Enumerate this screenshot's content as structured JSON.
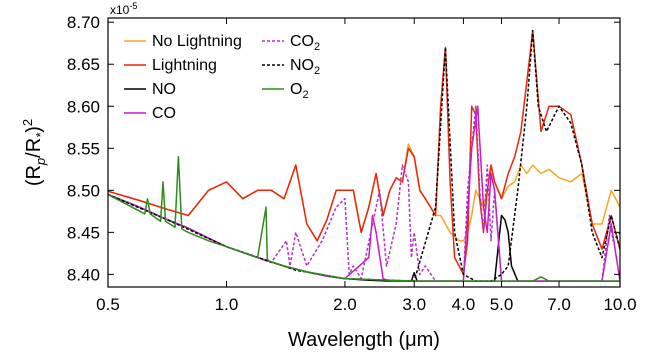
{
  "chart_data": {
    "type": "line",
    "title": "",
    "multiplier": {
      "base": "x10",
      "exp": "-5"
    },
    "xlabel": "Wavelength (μm)",
    "ylabel": {
      "main": "(R",
      "sub1": "p",
      "mid": "/R",
      "sub2": "*",
      "close": ")",
      "sup": "2"
    },
    "xscale": "log",
    "xlim": [
      0.5,
      10.0
    ],
    "ylim": [
      8.385,
      8.705
    ],
    "xticks": [
      0.5,
      1.0,
      2.0,
      3.0,
      4.0,
      5.0,
      7.0,
      10.0
    ],
    "xtick_labels": [
      "0.5",
      "1.0",
      "2.0",
      "3.0",
      "4.0",
      "5.0",
      "7.0",
      "10.0"
    ],
    "yticks": [
      8.4,
      8.45,
      8.5,
      8.55,
      8.6,
      8.65,
      8.7
    ],
    "ytick_labels": [
      "8.40",
      "8.45",
      "8.50",
      "8.55",
      "8.60",
      "8.65",
      "8.70"
    ],
    "grid": false,
    "legend_placement": "top-left",
    "series": [
      {
        "name": "No Lightning",
        "color": "#f5a623",
        "dash": "solid",
        "x": [
          0.5,
          0.6,
          0.7,
          0.8,
          0.9,
          1.0,
          1.1,
          1.2,
          1.3,
          1.4,
          1.5,
          1.6,
          1.7,
          1.8,
          1.9,
          2.0,
          2.1,
          2.2,
          2.3,
          2.4,
          2.5,
          2.6,
          2.7,
          2.8,
          2.9,
          3.0,
          3.1,
          3.2,
          3.3,
          3.4,
          3.5,
          3.6,
          3.7,
          3.8,
          3.9,
          4.0,
          4.1,
          4.2,
          4.3,
          4.4,
          4.5,
          4.6,
          4.7,
          4.8,
          4.9,
          5.0,
          5.2,
          5.4,
          5.6,
          5.8,
          6.0,
          6.3,
          6.6,
          7.0,
          7.5,
          8.0,
          8.5,
          9.0,
          9.5,
          10.0
        ],
        "y": [
          8.499,
          8.488,
          8.478,
          8.47,
          8.5,
          8.51,
          8.49,
          8.5,
          8.5,
          8.49,
          8.53,
          8.46,
          8.44,
          8.465,
          8.5,
          8.5,
          8.5,
          8.45,
          8.48,
          8.52,
          8.47,
          8.5,
          8.515,
          8.51,
          8.555,
          8.54,
          8.5,
          8.49,
          8.48,
          8.47,
          8.47,
          8.46,
          8.45,
          8.445,
          8.44,
          8.44,
          8.45,
          8.47,
          8.5,
          8.49,
          8.48,
          8.5,
          8.53,
          8.51,
          8.5,
          8.49,
          8.505,
          8.51,
          8.53,
          8.52,
          8.53,
          8.52,
          8.525,
          8.515,
          8.51,
          8.52,
          8.46,
          8.46,
          8.5,
          8.48
        ]
      },
      {
        "name": "Lightning",
        "color": "#e8270a",
        "dash": "solid",
        "x": [
          0.5,
          0.6,
          0.7,
          0.8,
          0.9,
          1.0,
          1.1,
          1.2,
          1.3,
          1.4,
          1.5,
          1.6,
          1.7,
          1.8,
          1.9,
          2.0,
          2.1,
          2.2,
          2.3,
          2.4,
          2.5,
          2.6,
          2.7,
          2.8,
          2.9,
          3.0,
          3.1,
          3.2,
          3.3,
          3.4,
          3.5,
          3.6,
          3.7,
          3.8,
          3.9,
          4.0,
          4.1,
          4.2,
          4.3,
          4.4,
          4.5,
          4.6,
          4.7,
          4.8,
          4.9,
          5.0,
          5.2,
          5.4,
          5.6,
          5.8,
          6.0,
          6.3,
          6.6,
          7.0,
          7.5,
          8.0,
          8.5,
          9.0,
          9.5,
          10.0
        ],
        "y": [
          8.499,
          8.488,
          8.478,
          8.47,
          8.5,
          8.51,
          8.49,
          8.5,
          8.5,
          8.49,
          8.53,
          8.46,
          8.44,
          8.465,
          8.5,
          8.5,
          8.5,
          8.45,
          8.48,
          8.52,
          8.47,
          8.5,
          8.515,
          8.51,
          8.55,
          8.54,
          8.5,
          8.49,
          8.48,
          8.47,
          8.6,
          8.67,
          8.51,
          8.42,
          8.41,
          8.4,
          8.44,
          8.6,
          8.59,
          8.49,
          8.45,
          8.5,
          8.53,
          8.51,
          8.5,
          8.49,
          8.52,
          8.54,
          8.57,
          8.63,
          8.69,
          8.57,
          8.6,
          8.6,
          8.59,
          8.53,
          8.46,
          8.43,
          8.47,
          8.43
        ]
      },
      {
        "name": "NO",
        "color": "#000000",
        "dash": "solid",
        "x": [
          0.5,
          0.6,
          0.7,
          0.8,
          0.9,
          1.0,
          1.2,
          1.4,
          1.6,
          1.8,
          2.0,
          2.3,
          2.6,
          2.8,
          2.95,
          3.0,
          3.05,
          3.3,
          3.5,
          4.0,
          4.8,
          5.0,
          5.1,
          5.2,
          5.3,
          5.5,
          6.0,
          7.0,
          8.0,
          9.0,
          10.0
        ],
        "y": [
          8.495,
          8.48,
          8.466,
          8.455,
          8.443,
          8.433,
          8.42,
          8.41,
          8.403,
          8.398,
          8.395,
          8.393,
          8.392,
          8.392,
          8.392,
          8.402,
          8.392,
          8.392,
          8.392,
          8.392,
          8.392,
          8.47,
          8.465,
          8.45,
          8.41,
          8.392,
          8.392,
          8.392,
          8.392,
          8.392,
          8.392
        ]
      },
      {
        "name": "CO",
        "color": "#cc18c2",
        "dash": "solid",
        "x": [
          0.5,
          0.6,
          0.7,
          0.8,
          0.9,
          1.0,
          1.2,
          1.4,
          1.6,
          1.8,
          2.0,
          2.3,
          2.35,
          2.4,
          2.5,
          2.6,
          2.8,
          3.0,
          3.5,
          4.0,
          4.2,
          4.35,
          4.5,
          4.6,
          4.7,
          4.8,
          5.0,
          5.5,
          6.0,
          7.0,
          8.0,
          9.0,
          9.5,
          10.0
        ],
        "y": [
          8.495,
          8.48,
          8.466,
          8.455,
          8.443,
          8.433,
          8.42,
          8.41,
          8.403,
          8.398,
          8.395,
          8.42,
          8.47,
          8.45,
          8.395,
          8.392,
          8.392,
          8.392,
          8.392,
          8.392,
          8.55,
          8.6,
          8.48,
          8.45,
          8.52,
          8.5,
          8.392,
          8.392,
          8.392,
          8.392,
          8.392,
          8.392,
          8.46,
          8.392
        ]
      },
      {
        "name": "CO2",
        "color": "#b031c9",
        "dash": "dashed",
        "x": [
          0.5,
          0.7,
          1.0,
          1.3,
          1.42,
          1.45,
          1.5,
          1.6,
          1.75,
          1.9,
          2.0,
          2.05,
          2.1,
          2.2,
          2.45,
          2.55,
          2.7,
          2.8,
          2.9,
          2.95,
          3.0,
          3.1,
          3.2,
          3.4,
          3.5,
          3.8,
          4.0,
          4.1,
          4.2,
          4.3,
          4.4,
          4.5,
          4.6,
          4.7,
          4.8,
          5.0,
          5.5,
          6.0,
          7.0,
          8.0,
          9.0,
          9.4,
          9.6,
          10.0
        ],
        "y": [
          8.495,
          8.466,
          8.433,
          8.414,
          8.44,
          8.41,
          8.45,
          8.41,
          8.44,
          8.48,
          8.49,
          8.4,
          8.41,
          8.395,
          8.5,
          8.41,
          8.46,
          8.53,
          8.51,
          8.42,
          8.45,
          8.4,
          8.41,
          8.392,
          8.392,
          8.392,
          8.392,
          8.5,
          8.55,
          8.6,
          8.5,
          8.45,
          8.53,
          8.44,
          8.5,
          8.392,
          8.392,
          8.392,
          8.392,
          8.392,
          8.392,
          8.47,
          8.44,
          8.45
        ]
      },
      {
        "name": "NO2",
        "color": "#000000",
        "dash": "dashed",
        "x": [
          0.5,
          0.7,
          1.0,
          1.5,
          2.0,
          3.0,
          3.4,
          3.6,
          3.8,
          4.0,
          4.3,
          4.7,
          5.0,
          5.2,
          5.5,
          5.8,
          6.0,
          6.2,
          6.5,
          7.0,
          7.5,
          8.0,
          8.5,
          9.0,
          9.5,
          10.0
        ],
        "y": [
          8.495,
          8.466,
          8.433,
          8.405,
          8.395,
          8.392,
          8.48,
          8.67,
          8.45,
          8.4,
          8.392,
          8.392,
          8.4,
          8.41,
          8.5,
          8.6,
          8.69,
          8.6,
          8.57,
          8.6,
          8.58,
          8.53,
          8.45,
          8.42,
          8.47,
          8.43
        ]
      },
      {
        "name": "O2",
        "color": "#2e8b1d",
        "dash": "solid",
        "x": [
          0.5,
          0.62,
          0.63,
          0.64,
          0.68,
          0.69,
          0.7,
          0.74,
          0.755,
          0.77,
          0.8,
          0.9,
          1.0,
          1.2,
          1.26,
          1.27,
          1.28,
          1.4,
          1.6,
          2.0,
          3.0,
          5.0,
          6.0,
          6.3,
          6.6,
          8.0,
          10.0
        ],
        "y": [
          8.495,
          8.472,
          8.49,
          8.472,
          8.463,
          8.51,
          8.463,
          8.456,
          8.54,
          8.454,
          8.45,
          8.44,
          8.433,
          8.42,
          8.48,
          8.418,
          8.416,
          8.41,
          8.403,
          8.395,
          8.392,
          8.392,
          8.392,
          8.397,
          8.392,
          8.392,
          8.392
        ]
      }
    ],
    "legend": [
      {
        "label": "No Lightning",
        "color": "#f5a623",
        "dash": "solid"
      },
      {
        "label": "Lightning",
        "color": "#e8270a",
        "dash": "solid"
      },
      {
        "label": "NO",
        "color": "#000000",
        "dash": "solid"
      },
      {
        "label": "CO",
        "color": "#cc18c2",
        "dash": "solid"
      },
      {
        "label": "CO",
        "sub": "2",
        "color": "#b031c9",
        "dash": "dashed"
      },
      {
        "label": "NO",
        "sub": "2",
        "color": "#000000",
        "dash": "dashed"
      },
      {
        "label": "O",
        "sub": "2",
        "color": "#2e8b1d",
        "dash": "solid"
      }
    ]
  }
}
